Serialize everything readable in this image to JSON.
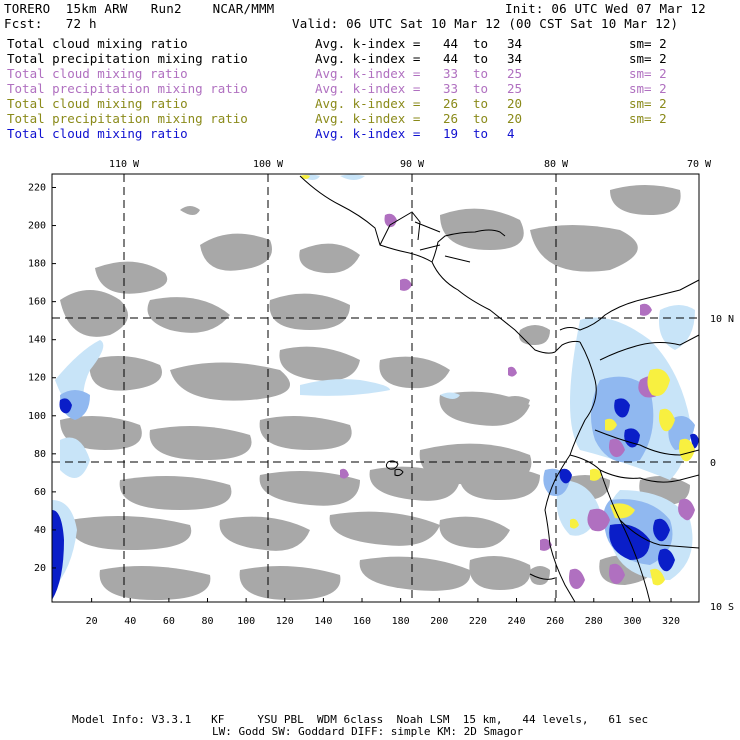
{
  "header": {
    "model": "TORERO  15km ARW   Run2    NCAR/MMM",
    "init": "Init: 06 UTC Wed 07 Mar 12",
    "fcst": "Fcst:   72 h",
    "valid": "Valid: 06 UTC Sat 10 Mar 12 (00 CST Sat 10 Mar 12)"
  },
  "fields": [
    {
      "name": "Total cloud mixing ratio",
      "avg": "Avg. k-index =",
      "from": "44",
      "to": "to",
      "end": "34",
      "sm": "sm= 2",
      "color": "#000000"
    },
    {
      "name": "Total precipitation mixing ratio",
      "avg": "Avg. k-index =",
      "from": "44",
      "to": "to",
      "end": "34",
      "sm": "sm= 2",
      "color": "#000000"
    },
    {
      "name": "Total cloud mixing ratio",
      "avg": "Avg. k-index =",
      "from": "33",
      "to": "to",
      "end": "25",
      "sm": "sm= 2",
      "color": "#b070c0"
    },
    {
      "name": "Total precipitation mixing ratio",
      "avg": "Avg. k-index =",
      "from": "33",
      "to": "to",
      "end": "25",
      "sm": "sm= 2",
      "color": "#b070c0"
    },
    {
      "name": "Total cloud mixing ratio",
      "avg": "Avg. k-index =",
      "from": "26",
      "to": "to",
      "end": "20",
      "sm": "sm= 2",
      "color": "#8a8a1a"
    },
    {
      "name": "Total precipitation mixing ratio",
      "avg": "Avg. k-index =",
      "from": "26",
      "to": "to",
      "end": "20",
      "sm": "sm= 2",
      "color": "#8a8a1a"
    },
    {
      "name": "Total cloud mixing ratio",
      "avg": "Avg. k-index =",
      "from": "19",
      "to": "to",
      "end": "4",
      "sm": "",
      "color": "#1010d0"
    }
  ],
  "map": {
    "lon_labels": [
      "110 W",
      "100 W",
      "90 W",
      "80 W",
      "70 W"
    ],
    "lat_labels": [
      "10 N",
      "0",
      "10 S"
    ],
    "y_ticks": [
      "220",
      "200",
      "180",
      "160",
      "140",
      "120",
      "100",
      "80",
      "60",
      "40",
      "20"
    ],
    "x_ticks": [
      "20",
      "40",
      "60",
      "80",
      "100",
      "120",
      "140",
      "160",
      "180",
      "200",
      "220",
      "240",
      "260",
      "280",
      "300",
      "320"
    ],
    "colors": {
      "cloud_gray": "#a8a8a8",
      "light_blue": "#c8e4f8",
      "mid_blue": "#90b8f0",
      "dark_blue": "#0a1ec8",
      "purple": "#b070c0",
      "yellow": "#f8f040",
      "coast": "#000000",
      "grid": "#000000"
    }
  },
  "footer": {
    "line1": "Model Info: V3.3.1   KF     YSU PBL  WDM 6class  Noah LSM  15 km,   44 levels,   61 sec",
    "line2": "LW: Godd SW: Goddard DIFF: simple KM: 2D Smagor"
  }
}
